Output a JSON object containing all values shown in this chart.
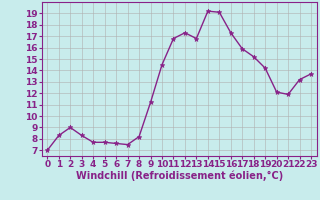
{
  "x": [
    0,
    1,
    2,
    3,
    4,
    5,
    6,
    7,
    8,
    9,
    10,
    11,
    12,
    13,
    14,
    15,
    16,
    17,
    18,
    19,
    20,
    21,
    22,
    23
  ],
  "y": [
    7.0,
    8.3,
    9.0,
    8.3,
    7.7,
    7.7,
    7.6,
    7.5,
    8.2,
    11.2,
    14.5,
    16.8,
    17.3,
    16.8,
    19.2,
    19.1,
    17.3,
    15.9,
    15.2,
    14.2,
    12.1,
    11.9,
    13.2,
    13.7
  ],
  "line_color": "#882288",
  "marker": "*",
  "marker_size": 3.5,
  "background_color": "#c8ecec",
  "grid_color": "#b0b0b0",
  "xlabel": "Windchill (Refroidissement éolien,°C)",
  "xlabel_fontsize": 7,
  "xlabel_color": "#882288",
  "tick_fontsize": 6.5,
  "tick_color": "#882288",
  "ylim": [
    6.5,
    20.0
  ],
  "xlim": [
    -0.5,
    23.5
  ],
  "yticks": [
    7,
    8,
    9,
    10,
    11,
    12,
    13,
    14,
    15,
    16,
    17,
    18,
    19
  ],
  "xticks": [
    0,
    1,
    2,
    3,
    4,
    5,
    6,
    7,
    8,
    9,
    10,
    11,
    12,
    13,
    14,
    15,
    16,
    17,
    18,
    19,
    20,
    21,
    22,
    23
  ],
  "spine_color": "#882288",
  "linewidth": 1.0
}
